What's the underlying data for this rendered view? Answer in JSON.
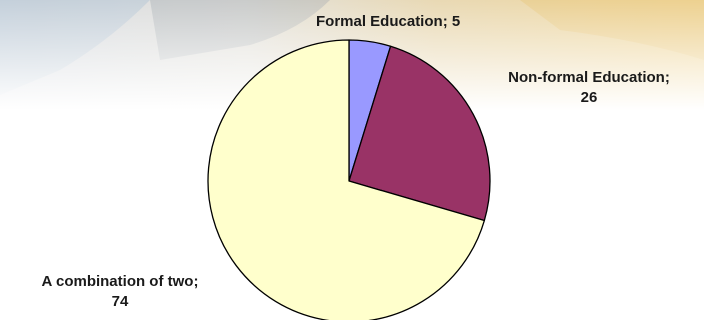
{
  "chart_data": {
    "type": "pie",
    "categories": [
      "Formal Education",
      "Non-formal Education",
      "A combination of two"
    ],
    "values": [
      5,
      26,
      74
    ],
    "colors": [
      "#9999FF",
      "#993366",
      "#FFFFCC"
    ],
    "edge_color": "#000000",
    "start_angle_deg": 0,
    "direction": "clockwise",
    "labels": [
      {
        "category": "Formal Education",
        "separator": "; ",
        "value": "5"
      },
      {
        "category": "Non-formal Education",
        "separator": ";",
        "value": "26"
      },
      {
        "category": "A combination of two",
        "separator": ";",
        "value": "74"
      }
    ]
  }
}
